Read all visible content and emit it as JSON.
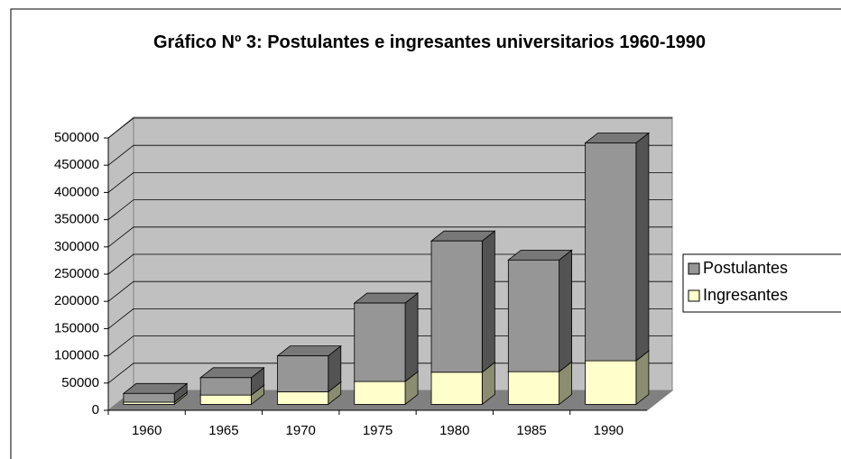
{
  "chart_data": {
    "type": "bar3d_stacked",
    "title": "Gráfico Nº 3: Postulantes e ingresantes universitarios 1960-1990",
    "categories": [
      "1960",
      "1965",
      "1970",
      "1975",
      "1980",
      "1985",
      "1990"
    ],
    "series": [
      {
        "name": "Ingresantes",
        "color": "#ffffcc",
        "values": [
          4000,
          17000,
          23000,
          42000,
          59000,
          60000,
          80000
        ]
      },
      {
        "name": "Postulantes",
        "color": "#969696",
        "values": [
          16000,
          32000,
          66000,
          144000,
          241000,
          205000,
          400000
        ]
      }
    ],
    "ylim": [
      0,
      500000
    ],
    "yticks": [
      0,
      50000,
      100000,
      150000,
      200000,
      250000,
      300000,
      350000,
      400000,
      450000,
      500000
    ],
    "grid": true,
    "legend": "right"
  }
}
